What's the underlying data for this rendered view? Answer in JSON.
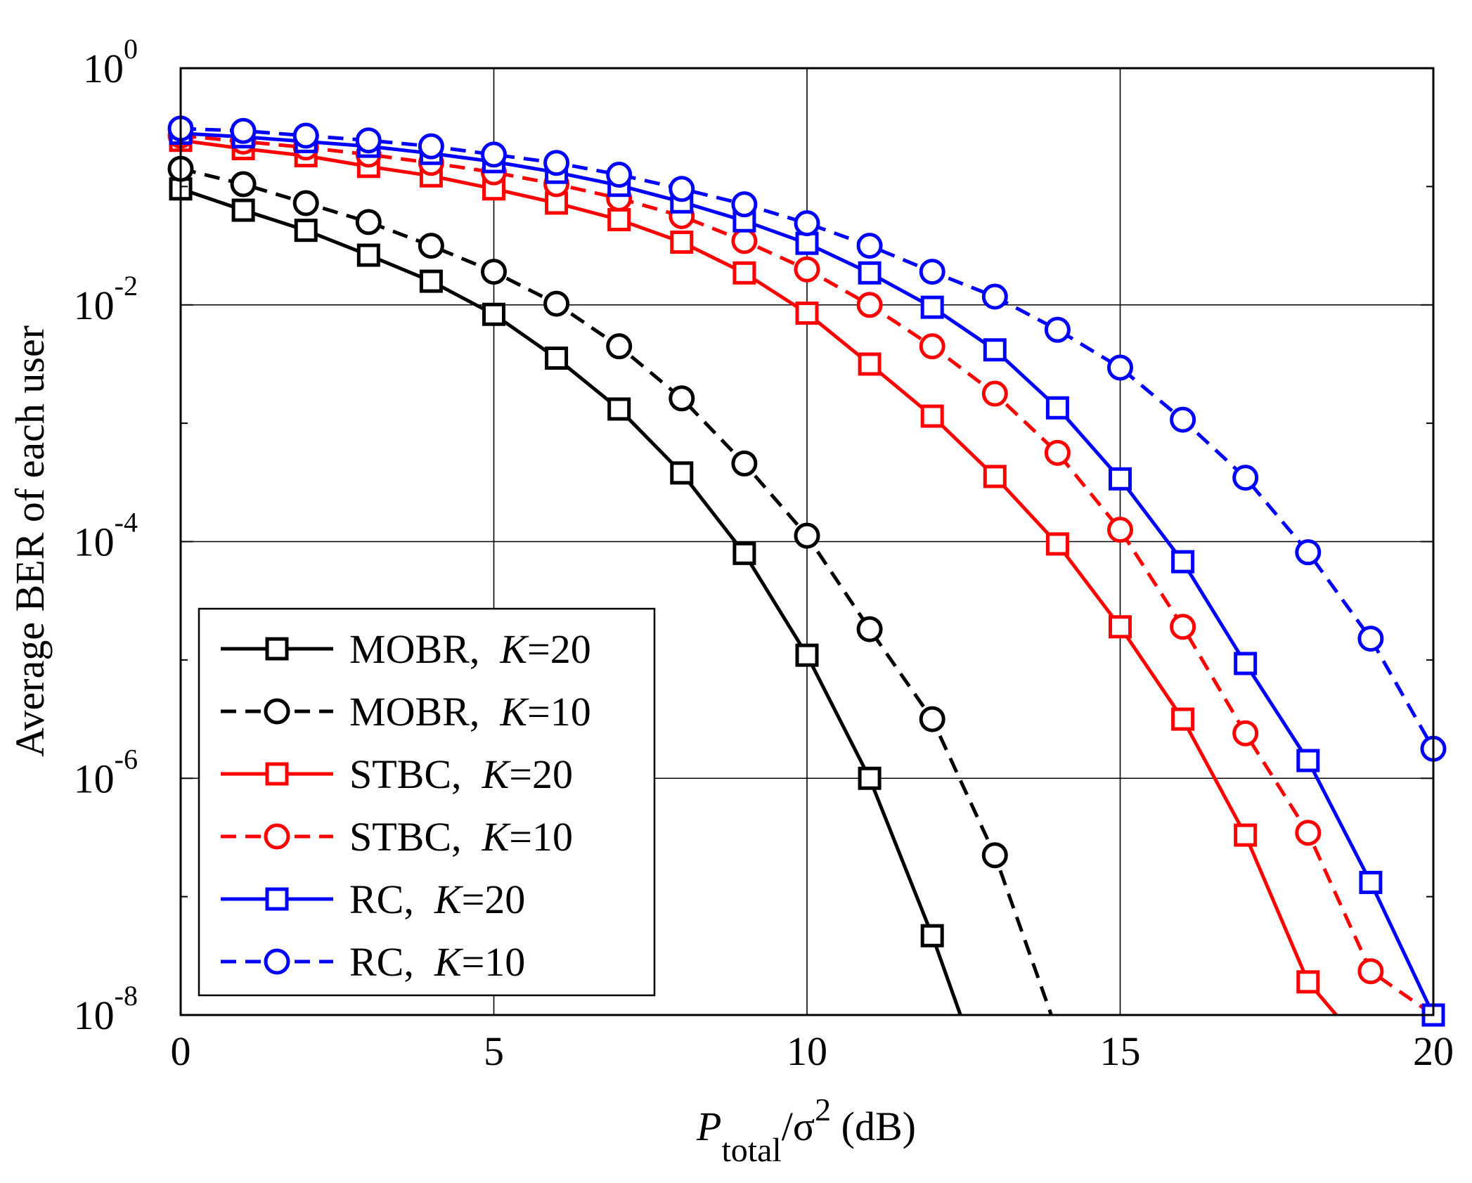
{
  "chart_data": {
    "type": "line",
    "title": "",
    "xlabel": {
      "main": "P",
      "sub": "total",
      "rest": "/σ",
      "sup": "2",
      "unit": " (dB)"
    },
    "ylabel": "Average BER of each user",
    "yscale": "log",
    "xlim": [
      0,
      20
    ],
    "ylim_exponent": [
      -8,
      0
    ],
    "xticks": [
      "0",
      "5",
      "10",
      "15",
      "20"
    ],
    "yticks": [
      {
        "base": "10",
        "exp": "0"
      },
      {
        "base": "10",
        "exp": "-2"
      },
      {
        "base": "10",
        "exp": "-4"
      },
      {
        "base": "10",
        "exp": "-6"
      },
      {
        "base": "10",
        "exp": "-8"
      }
    ],
    "grid": true,
    "legend_position": "bottom-left",
    "x": [
      0,
      1,
      2,
      3,
      4,
      5,
      6,
      7,
      8,
      9,
      10,
      11,
      12,
      13,
      14,
      15,
      16,
      17,
      18,
      19,
      20
    ],
    "series": [
      {
        "name": "MOBR",
        "k_label": "K",
        "k_value": "=20",
        "color": "#000000",
        "dash": "solid",
        "marker": "square",
        "log10_values": [
          -1.02,
          -1.2,
          -1.37,
          -1.58,
          -1.8,
          -2.08,
          -2.45,
          -2.88,
          -3.42,
          -4.1,
          -4.96,
          -6.0,
          -7.33,
          null,
          null,
          null,
          null,
          null,
          null,
          null,
          null
        ],
        "curve_end": {
          "x": 12.45,
          "log10": -8.0
        }
      },
      {
        "name": "MOBR",
        "k_label": "K",
        "k_value": "=10",
        "color": "#000000",
        "dash": "dashed",
        "marker": "circle",
        "log10_values": [
          -0.85,
          -0.98,
          -1.14,
          -1.3,
          -1.5,
          -1.72,
          -1.99,
          -2.35,
          -2.79,
          -3.34,
          -3.95,
          -4.74,
          -5.5,
          -6.65,
          null,
          null,
          null,
          null,
          null,
          null,
          null
        ],
        "curve_end": {
          "x": 13.9,
          "log10": -8.0
        }
      },
      {
        "name": "STBC",
        "k_label": "K",
        "k_value": "=20",
        "color": "#ff0000",
        "dash": "solid",
        "marker": "square",
        "log10_values": [
          -0.61,
          -0.68,
          -0.74,
          -0.83,
          -0.91,
          -1.02,
          -1.14,
          -1.28,
          -1.47,
          -1.73,
          -2.07,
          -2.5,
          -2.94,
          -3.45,
          -4.02,
          -4.72,
          -5.5,
          -6.48,
          -7.72,
          null,
          null
        ],
        "curve_end": {
          "x": 18.45,
          "log10": -8.0
        }
      },
      {
        "name": "STBC",
        "k_label": "K",
        "k_value": "=10",
        "color": "#ff0000",
        "dash": "dashed",
        "marker": "circle",
        "log10_values": [
          -0.57,
          -0.62,
          -0.67,
          -0.73,
          -0.8,
          -0.88,
          -0.98,
          -1.1,
          -1.25,
          -1.46,
          -1.7,
          -2.0,
          -2.35,
          -2.75,
          -3.25,
          -3.9,
          -4.72,
          -5.62,
          -6.46,
          -7.63,
          null
        ],
        "curve_end": {
          "x": 20,
          "log10": -8.0
        }
      },
      {
        "name": "RC",
        "k_label": "K",
        "k_value": "=20",
        "color": "#0000ff",
        "dash": "solid",
        "marker": "square",
        "log10_values": [
          -0.55,
          -0.58,
          -0.62,
          -0.66,
          -0.72,
          -0.79,
          -0.88,
          -0.99,
          -1.13,
          -1.29,
          -1.48,
          -1.73,
          -2.02,
          -2.38,
          -2.87,
          -3.47,
          -4.17,
          -5.03,
          -5.85,
          -6.88,
          -8.0
        ],
        "curve_end": null
      },
      {
        "name": "RC",
        "k_label": "K",
        "k_value": "=10",
        "color": "#0000ff",
        "dash": "dashed",
        "marker": "circle",
        "log10_values": [
          -0.51,
          -0.53,
          -0.57,
          -0.61,
          -0.66,
          -0.73,
          -0.8,
          -0.9,
          -1.02,
          -1.15,
          -1.31,
          -1.5,
          -1.72,
          -1.93,
          -2.21,
          -2.53,
          -2.97,
          -3.46,
          -4.09,
          -4.82,
          -5.75
        ],
        "curve_end": null
      }
    ]
  }
}
